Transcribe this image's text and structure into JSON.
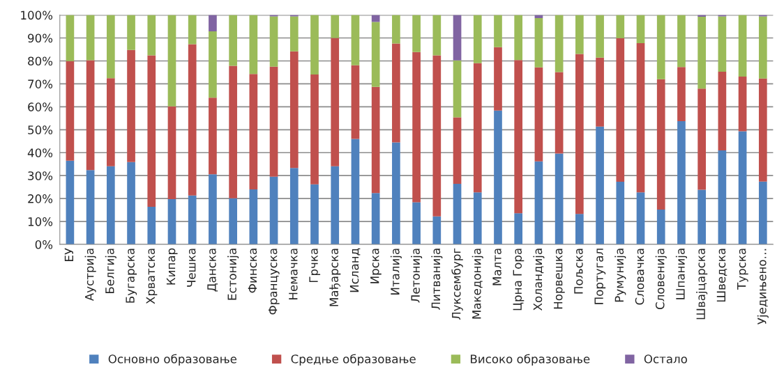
{
  "chart_data": {
    "type": "bar",
    "stacked": true,
    "categories": [
      "ЕУ",
      "Аустрија",
      "Белгија",
      "Бугарска",
      "Хрватска",
      "Кипар",
      "Чешка",
      "Данска",
      "Естонија",
      "Финска",
      "Француска",
      "Немачка",
      "Грчка",
      "Мађарска",
      "Исланд",
      "Ирска",
      "Италија",
      "Летонија",
      "Литванија",
      "Луксембург",
      "Македонија",
      "Малта",
      "Црна Гора",
      "Холандија",
      "Норвешка",
      "Пољска",
      "Португал",
      "Румунија",
      "Словачка",
      "Словенија",
      "Шпанија",
      "Швајцарска",
      "Шведска",
      "Турска",
      "Уједињено…"
    ],
    "series": [
      {
        "name": "Основно образовање",
        "color": "#4f81bd",
        "values": [
          36.5,
          32.4,
          34.1,
          35.9,
          16.4,
          19.7,
          21.3,
          30.6,
          20.1,
          24.0,
          29.5,
          33.3,
          26.2,
          34.1,
          46.0,
          22.4,
          44.5,
          18.4,
          12.2,
          26.4,
          22.7,
          58.4,
          13.6,
          36.2,
          39.6,
          13.3,
          51.4,
          27.3,
          22.7,
          15.2,
          53.7,
          23.8,
          41.0,
          49.3,
          27.4
        ]
      },
      {
        "name": "Средње образовање",
        "color": "#c0504d",
        "values": [
          43.4,
          47.9,
          38.4,
          48.9,
          66.0,
          40.5,
          66.0,
          33.4,
          57.8,
          50.3,
          48.0,
          50.9,
          47.9,
          55.9,
          32.1,
          46.3,
          43.1,
          65.5,
          70.2,
          29.0,
          56.3,
          27.6,
          66.8,
          41.0,
          35.5,
          69.7,
          30.0,
          62.6,
          65.0,
          56.8,
          23.6,
          44.1,
          34.3,
          23.9,
          44.9
        ]
      },
      {
        "name": "Високо образовање",
        "color": "#9bbb59",
        "values": [
          20.1,
          19.7,
          27.5,
          15.2,
          17.6,
          39.8,
          12.7,
          28.9,
          22.1,
          25.7,
          21.9,
          15.2,
          25.9,
          10.0,
          21.9,
          28.3,
          12.4,
          16.1,
          17.6,
          24.8,
          21.0,
          14.0,
          19.6,
          21.5,
          24.9,
          17.0,
          18.6,
          10.1,
          12.3,
          28.0,
          22.7,
          31.4,
          24.1,
          26.8,
          27.1
        ]
      },
      {
        "name": "Остало",
        "color": "#8064a2",
        "values": [
          0,
          0,
          0,
          0,
          0,
          0,
          0,
          7.1,
          0,
          0,
          0.6,
          0.6,
          0,
          0,
          0,
          3.0,
          0,
          0,
          0,
          19.8,
          0,
          0,
          0,
          1.3,
          0,
          0,
          0,
          0,
          0,
          0,
          0,
          0.7,
          0.6,
          0,
          0.6
        ]
      }
    ],
    "ylim": [
      0,
      100
    ],
    "yticks": [
      {
        "value": 0,
        "label": "0%"
      },
      {
        "value": 10,
        "label": "10%"
      },
      {
        "value": 20,
        "label": "20%"
      },
      {
        "value": 30,
        "label": "30%"
      },
      {
        "value": 40,
        "label": "40%"
      },
      {
        "value": 50,
        "label": "50%"
      },
      {
        "value": 60,
        "label": "60%"
      },
      {
        "value": 70,
        "label": "70%"
      },
      {
        "value": 80,
        "label": "80%"
      },
      {
        "value": 90,
        "label": "90%"
      },
      {
        "value": 100,
        "label": "100%"
      }
    ],
    "grid": "y",
    "legend": "bottom"
  }
}
